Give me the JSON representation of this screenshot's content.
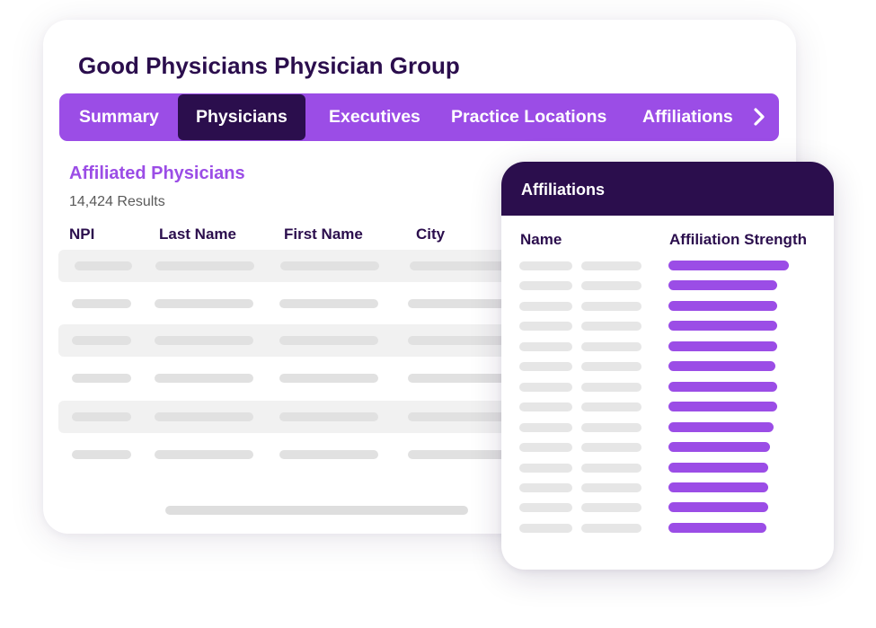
{
  "header": {
    "title": "Good Physicians Physician Group"
  },
  "tabs": [
    {
      "label": "Summary",
      "active": false
    },
    {
      "label": "Physicians",
      "active": true
    },
    {
      "label": "Executives",
      "active": false
    },
    {
      "label": "Practice Locations",
      "active": false
    },
    {
      "label": "Affiliations",
      "active": false
    }
  ],
  "physicians": {
    "section_title": "Affiliated Physicians",
    "results": "14,424 Results",
    "columns": [
      "NPI",
      "Last Name",
      "First Name",
      "City"
    ]
  },
  "affiliations": {
    "title": "Affiliations",
    "columns": [
      "Name",
      "Affiliation Strength"
    ],
    "strengths": [
      1.0,
      0.9,
      0.9,
      0.9,
      0.9,
      0.89,
      0.9,
      0.9,
      0.87,
      0.84,
      0.83,
      0.83,
      0.83,
      0.81
    ]
  },
  "colors": {
    "brand_purple": "#9b4de6",
    "dark_purple": "#2b0e4d"
  }
}
